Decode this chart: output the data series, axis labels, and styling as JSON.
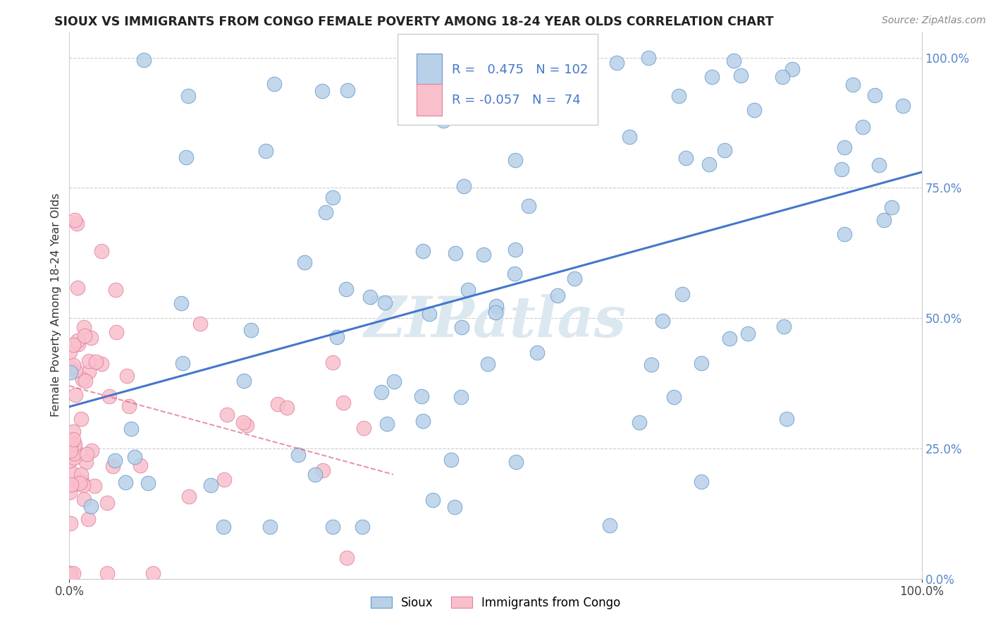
{
  "title": "SIOUX VS IMMIGRANTS FROM CONGO FEMALE POVERTY AMONG 18-24 YEAR OLDS CORRELATION CHART",
  "source": "Source: ZipAtlas.com",
  "ylabel": "Female Poverty Among 18-24 Year Olds",
  "legend_r1_val": "0.475",
  "legend_n1_val": "102",
  "legend_r2_val": "-0.057",
  "legend_n2_val": "74",
  "ytick_vals": [
    0.0,
    0.25,
    0.5,
    0.75,
    1.0
  ],
  "ytick_labels": [
    "0.0%",
    "25.0%",
    "50.0%",
    "75.0%",
    "100.0%"
  ],
  "blue_fill": "#b8d0e8",
  "blue_edge": "#6699cc",
  "blue_line": "#4477cc",
  "pink_fill": "#f9c0cc",
  "pink_edge": "#e080a0",
  "pink_line": "#e06080",
  "bg_color": "#ffffff",
  "watermark": "ZIPatlas",
  "watermark_color": "#dce8f0",
  "grid_color": "#cccccc",
  "right_tick_color": "#5588cc",
  "title_color": "#222222",
  "source_color": "#888888"
}
